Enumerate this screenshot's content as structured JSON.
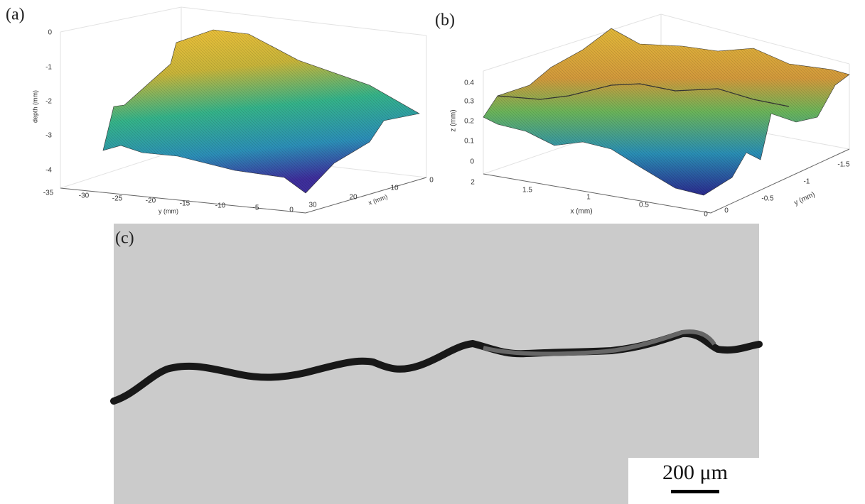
{
  "panels": [
    {
      "label": "(a)",
      "z_label": "depth (mm)",
      "z_ticks": [
        "0",
        "-1",
        "-2",
        "-3",
        "-4"
      ],
      "y_label": "y (mm)",
      "y_ticks": [
        "-35",
        "-30",
        "-25",
        "-20",
        "-15",
        "-10",
        "-5",
        "0"
      ],
      "x_label": "x (mm)",
      "x_ticks": [
        "30",
        "20",
        "10",
        "0"
      ]
    },
    {
      "label": "(b)",
      "z_label": "z (mm)",
      "z_ticks": [
        "0.4",
        "0.3",
        "0.2",
        "0.1",
        "0"
      ],
      "x_label": "x (mm)",
      "x_ticks": [
        "2",
        "1.5",
        "1",
        "0.5",
        "0"
      ],
      "y_label": "y (mm)",
      "y_ticks": [
        "0",
        "-0.5",
        "-1",
        "-1.5"
      ]
    },
    {
      "label": "(c)",
      "scale_bar": "200 μm"
    }
  ]
}
